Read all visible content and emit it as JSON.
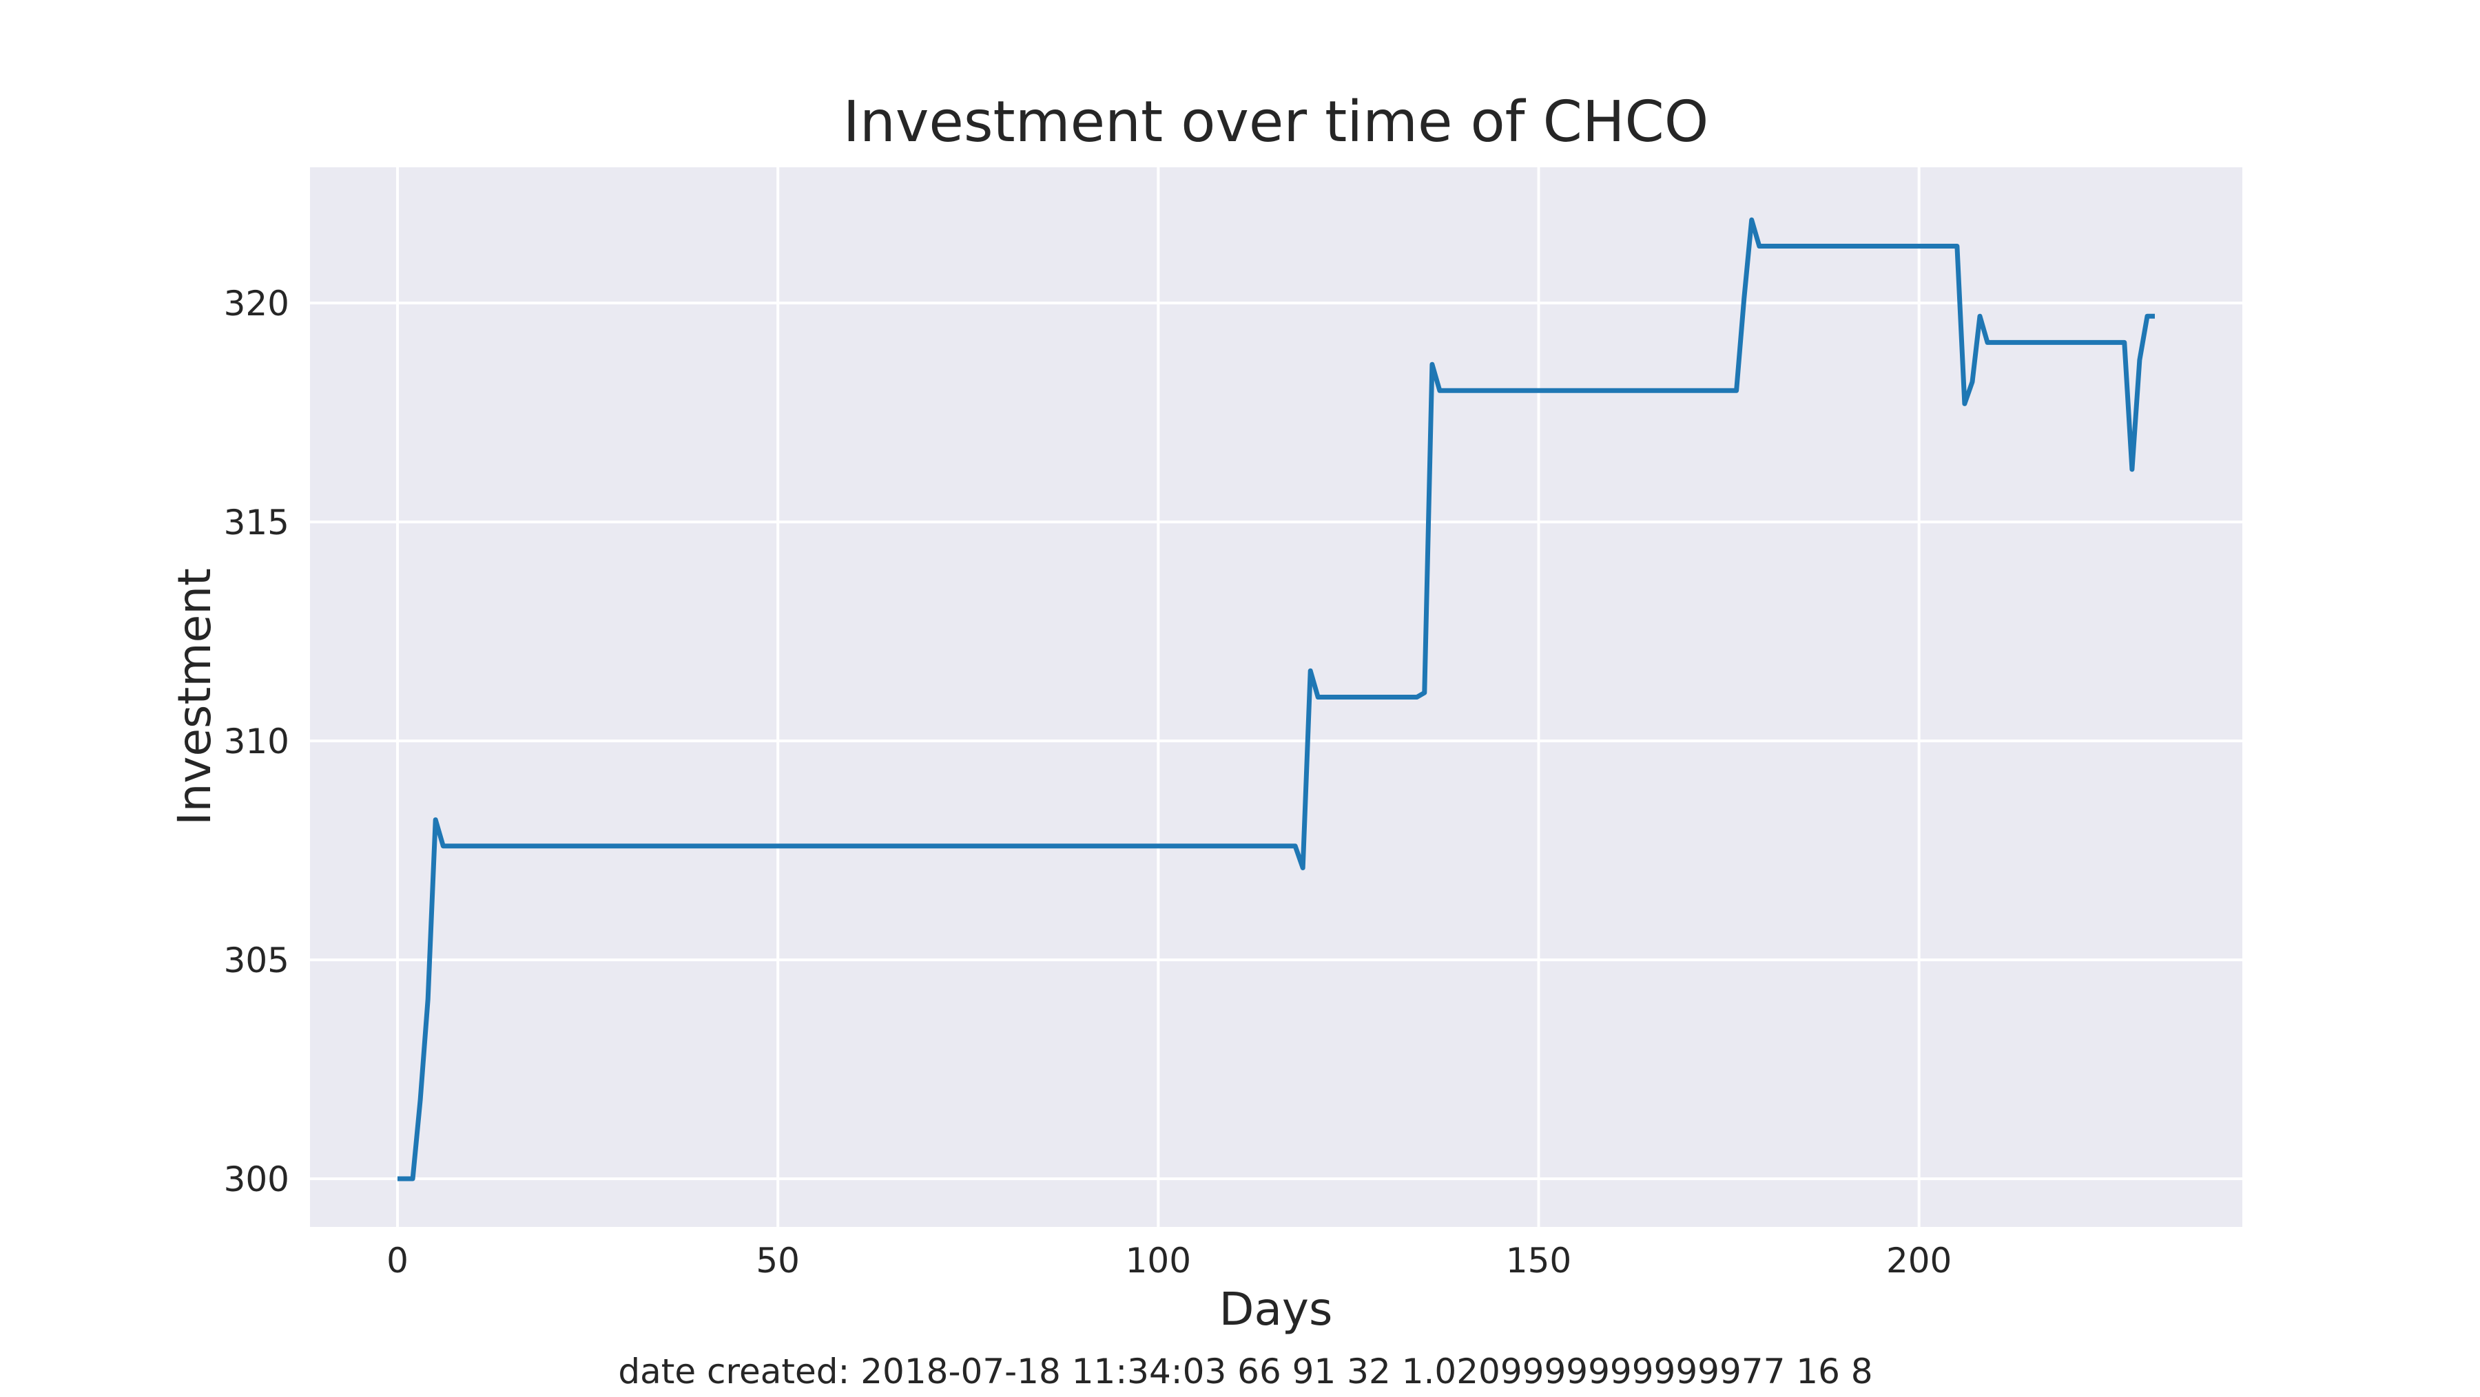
{
  "chart_data": {
    "type": "line",
    "title": "Investment over time of CHCO",
    "xlabel": "Days",
    "ylabel": "Investment",
    "footer": "date created: 2018-07-18 11:34:03 66 91 32 1.0209999999999977 16 8",
    "xlim": [
      -11.5,
      242.5
    ],
    "ylim": [
      298.9,
      323.1
    ],
    "xticks": [
      0,
      50,
      100,
      150,
      200
    ],
    "yticks": [
      300,
      305,
      310,
      315,
      320
    ],
    "grid": true,
    "legend": "none",
    "colors": {
      "background": "#eaeaf2",
      "grid": "#ffffff",
      "line": "#1f77b4"
    },
    "series": [
      {
        "x": [
          0,
          2,
          3,
          4,
          5,
          6,
          118,
          119,
          120,
          121,
          134,
          135,
          136,
          137,
          176,
          177,
          178,
          179,
          205,
          206,
          207,
          208,
          209,
          227,
          228,
          229,
          230,
          231
        ],
        "y": [
          300.0,
          300.0,
          301.8,
          304.1,
          308.2,
          307.6,
          307.6,
          307.1,
          311.6,
          311.0,
          311.0,
          311.1,
          318.6,
          318.0,
          318.0,
          320.1,
          321.9,
          321.3,
          321.3,
          317.7,
          318.2,
          319.7,
          319.1,
          319.1,
          316.2,
          318.7,
          319.7,
          319.7
        ]
      }
    ]
  }
}
